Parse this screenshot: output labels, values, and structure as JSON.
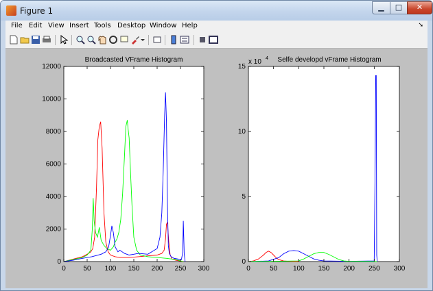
{
  "window": {
    "title": "Figure 1",
    "min_icon": "minimize-icon",
    "max_icon": "maximize-icon",
    "close_icon": "close-icon"
  },
  "menu": {
    "items": [
      "File",
      "Edit",
      "View",
      "Insert",
      "Tools",
      "Desktop",
      "Window",
      "Help"
    ]
  },
  "toolbar": {
    "icons": [
      "new-figure-icon",
      "open-file-icon",
      "save-icon",
      "print-icon",
      "pointer-icon",
      "zoom-in-icon",
      "zoom-out-icon",
      "pan-icon",
      "rotate-icon",
      "data-cursor-icon",
      "brush-icon",
      "link-icon",
      "colorbar-icon",
      "legend-icon",
      "hide-plot-tools-icon",
      "show-plot-tools-icon"
    ]
  },
  "colors": {
    "red": "#ff0000",
    "green": "#00ff00",
    "blue": "#0000ff",
    "figure_bg": "#c0c0c0"
  },
  "chart_data": [
    {
      "type": "line",
      "title": "Broadcasted VFrame Histogram",
      "xlabel": "",
      "ylabel": "",
      "xlim": [
        0,
        300
      ],
      "ylim": [
        0,
        12000
      ],
      "xticks": [
        0,
        50,
        100,
        150,
        200,
        250,
        300
      ],
      "yticks": [
        0,
        2000,
        4000,
        6000,
        8000,
        10000,
        12000
      ],
      "tick_labels_x": [
        "0",
        "50",
        "100",
        "150",
        "200",
        "250",
        "300"
      ],
      "tick_labels_y": [
        "0",
        "2000",
        "4000",
        "6000",
        "8000",
        "10000",
        "12000"
      ],
      "grid": false,
      "series": [
        {
          "color": "red",
          "x": [
            0,
            20,
            40,
            50,
            58,
            62,
            66,
            70,
            73,
            76,
            79,
            82,
            86,
            90,
            95,
            100,
            110,
            120,
            140,
            160,
            180,
            200,
            210,
            215,
            218,
            220,
            222,
            225,
            228,
            232,
            240,
            256
          ],
          "values": [
            0,
            150,
            300,
            450,
            600,
            800,
            1500,
            4500,
            7500,
            8300,
            8600,
            7000,
            3000,
            1200,
            600,
            400,
            300,
            250,
            250,
            300,
            350,
            400,
            500,
            700,
            1400,
            2300,
            2400,
            1200,
            400,
            150,
            80,
            0
          ]
        },
        {
          "color": "green",
          "x": [
            0,
            20,
            40,
            50,
            58,
            61,
            63,
            65,
            68,
            72,
            76,
            80,
            86,
            92,
            100,
            106,
            110,
            114,
            118,
            122,
            126,
            130,
            133,
            136,
            138,
            140,
            143,
            146,
            150,
            156,
            164,
            180,
            200,
            220,
            240,
            256
          ],
          "values": [
            0,
            120,
            250,
            400,
            700,
            2000,
            3900,
            2500,
            1800,
            1500,
            2100,
            1300,
            1000,
            800,
            700,
            900,
            1200,
            1400,
            1800,
            2600,
            4200,
            6500,
            8300,
            8700,
            8100,
            7600,
            5500,
            3500,
            1500,
            700,
            400,
            300,
            250,
            200,
            120,
            0
          ]
        },
        {
          "color": "blue",
          "x": [
            0,
            20,
            40,
            60,
            80,
            90,
            96,
            100,
            103,
            106,
            110,
            116,
            120,
            130,
            140,
            150,
            160,
            180,
            200,
            206,
            210,
            213,
            216,
            218,
            220,
            222,
            224,
            226,
            230,
            236,
            246,
            252,
            255,
            256,
            257,
            258,
            260
          ],
          "values": [
            0,
            80,
            200,
            300,
            450,
            600,
            900,
            1600,
            2200,
            1800,
            900,
            600,
            700,
            500,
            400,
            450,
            500,
            450,
            800,
            1500,
            3000,
            5500,
            9000,
            10400,
            8600,
            3500,
            1000,
            500,
            300,
            200,
            150,
            120,
            600,
            2500,
            1500,
            500,
            0
          ]
        }
      ]
    },
    {
      "type": "line",
      "title": "Selfe developd vFrame Histogram",
      "xlabel": "",
      "ylabel": "",
      "multiplier_label": "x 10",
      "multiplier_exponent": "4",
      "xlim": [
        0,
        300
      ],
      "ylim": [
        0,
        15
      ],
      "xticks": [
        0,
        50,
        100,
        150,
        200,
        250,
        300
      ],
      "yticks": [
        0,
        5,
        10,
        15
      ],
      "tick_labels_x": [
        "0",
        "50",
        "100",
        "150",
        "200",
        "250",
        "300"
      ],
      "tick_labels_y": [
        "0",
        "5",
        "10",
        "15"
      ],
      "grid": false,
      "series": [
        {
          "color": "red",
          "x": [
            0,
            10,
            20,
            30,
            35,
            40,
            45,
            50,
            55,
            60,
            70,
            80,
            90,
            100
          ],
          "values": [
            0,
            0.05,
            0.2,
            0.5,
            0.7,
            0.8,
            0.7,
            0.5,
            0.3,
            0.15,
            0.05,
            0.02,
            0,
            0
          ]
        },
        {
          "color": "blue",
          "x": [
            0,
            40,
            60,
            70,
            80,
            90,
            100,
            110,
            120,
            130,
            140,
            150,
            200,
            250,
            252,
            253,
            254,
            255,
            256
          ],
          "values": [
            0,
            0.05,
            0.3,
            0.6,
            0.8,
            0.85,
            0.8,
            0.6,
            0.4,
            0.2,
            0.1,
            0.05,
            0.02,
            0.05,
            8,
            14.3,
            14.3,
            0.5,
            0
          ]
        },
        {
          "color": "green",
          "x": [
            0,
            100,
            110,
            120,
            130,
            140,
            150,
            160,
            170,
            180,
            190,
            200,
            256
          ],
          "values": [
            0,
            0.05,
            0.2,
            0.4,
            0.6,
            0.7,
            0.7,
            0.55,
            0.35,
            0.15,
            0.05,
            0.02,
            0
          ]
        }
      ]
    }
  ]
}
